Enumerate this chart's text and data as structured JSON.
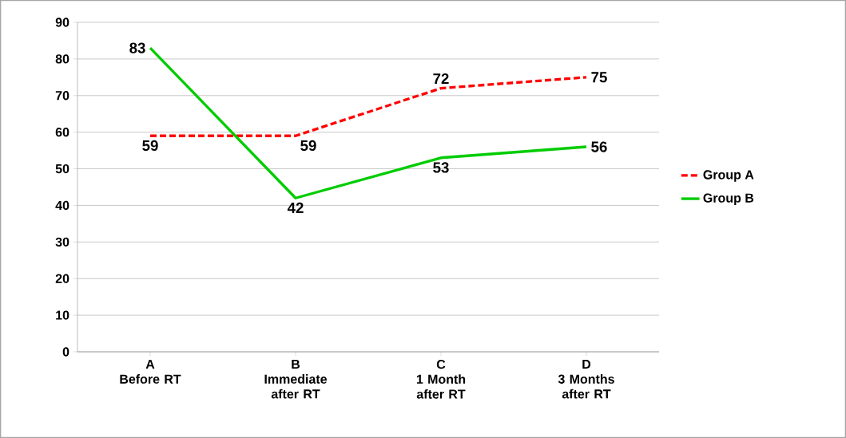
{
  "chart_data": {
    "type": "line",
    "categories": [
      "A\nBefore RT",
      "B\nImmediate after RT",
      "C\n1 Month after RT",
      "D\n3 Months after RT"
    ],
    "series": [
      {
        "name": "Group A",
        "color": "#ff0000",
        "line_style": "dashed",
        "values": [
          59,
          59,
          72,
          75
        ]
      },
      {
        "name": "Group B",
        "color": "#00cc00",
        "line_style": "solid",
        "values": [
          83,
          42,
          53,
          56
        ]
      }
    ],
    "ylim": [
      0,
      90
    ],
    "yticks": [
      0,
      10,
      20,
      30,
      40,
      50,
      60,
      70,
      80,
      90
    ],
    "grid": "y",
    "legend": "right",
    "data_labels": true
  }
}
